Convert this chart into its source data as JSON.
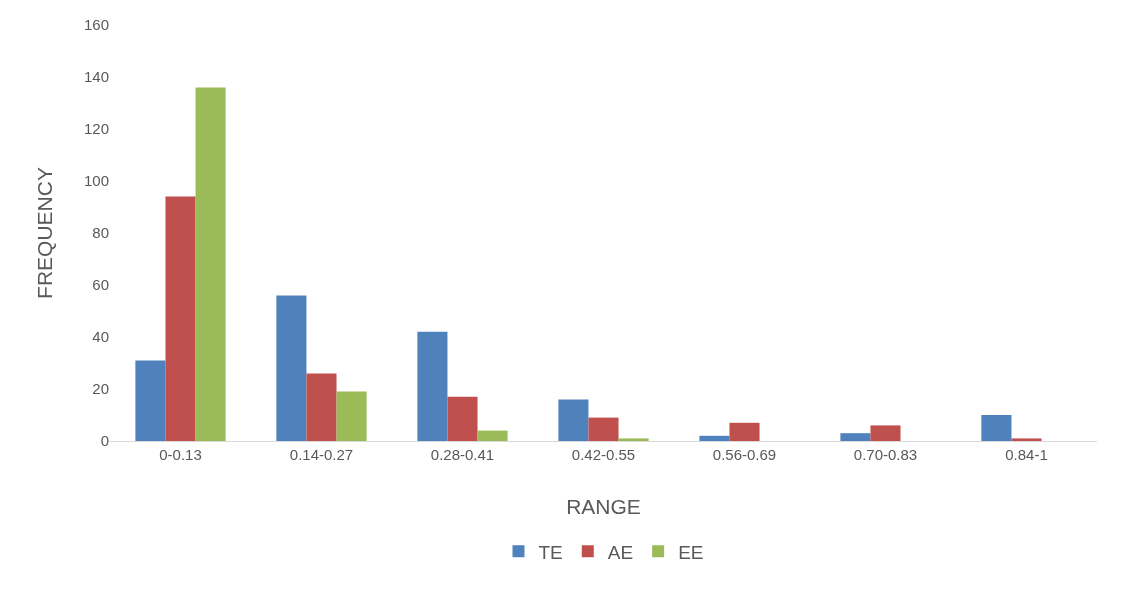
{
  "chart_data": {
    "type": "bar",
    "xlabel": "RANGE",
    "ylabel": "FREQUENCY",
    "categories": [
      "0-0.13",
      "0.14-0.27",
      "0.28-0.41",
      "0.42-0.55",
      "0.56-0.69",
      "0.70-0.83",
      "0.84-1"
    ],
    "series": [
      {
        "name": "TE",
        "color": "#4f81bd",
        "values": [
          31,
          56,
          42,
          16,
          2,
          3,
          10
        ]
      },
      {
        "name": "AE",
        "color": "#c0504d",
        "values": [
          94,
          26,
          17,
          9,
          7,
          6,
          1
        ]
      },
      {
        "name": "EE",
        "color": "#9bbb59",
        "values": [
          136,
          19,
          4,
          1,
          0,
          0,
          0
        ]
      }
    ],
    "ylim": [
      0,
      160
    ],
    "yticks": [
      0,
      20,
      40,
      60,
      80,
      100,
      120,
      140,
      160
    ],
    "grid": false,
    "legend": "bottom"
  }
}
